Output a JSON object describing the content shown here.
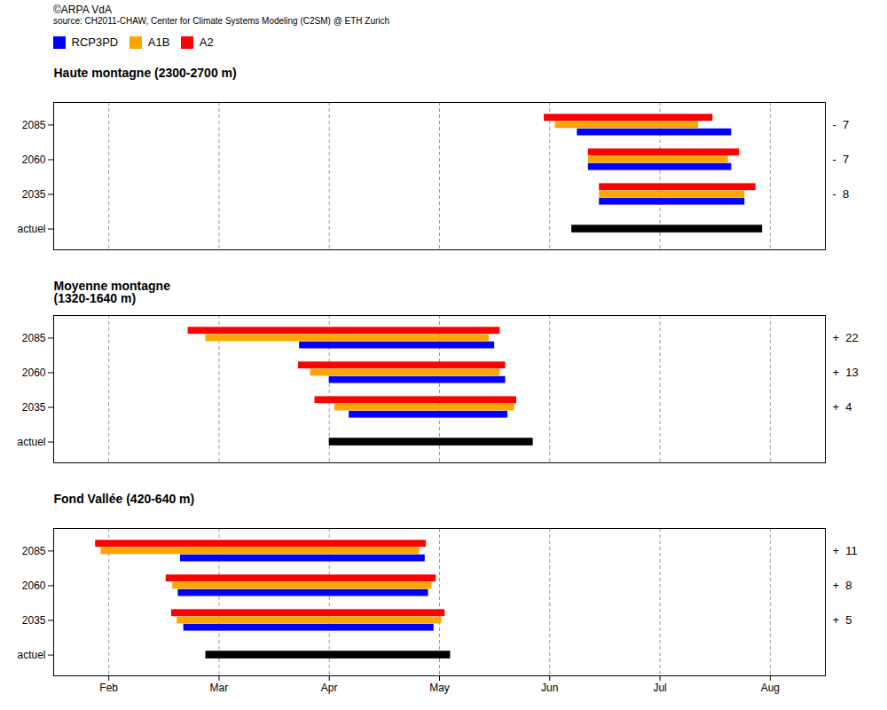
{
  "title": "©ARPA VdA",
  "subtitle": "source: CH2011-CHAW, Center for Climate Systems Modeling (C2SM) @ ETH Zurich",
  "chart_data": [
    {
      "type": "bar",
      "orientation": "horizontal",
      "title": "Haute montagne (2300-2700 m)",
      "categories": [
        "actuel",
        "2035",
        "2060",
        "2085"
      ],
      "series": [
        {
          "color": "#000000",
          "values": [
            [
              6.2,
              7.93
            ],
            null,
            null,
            null
          ]
        },
        {
          "name": "RCP3PD",
          "color": "#0000FF",
          "values": [
            null,
            [
              6.45,
              7.77
            ],
            [
              6.35,
              7.65
            ],
            [
              6.25,
              7.65
            ]
          ]
        },
        {
          "name": "A1B",
          "color": "#FFA500",
          "values": [
            null,
            [
              6.45,
              7.77
            ],
            [
              6.35,
              7.62
            ],
            [
              6.05,
              7.35
            ]
          ]
        },
        {
          "name": "A2",
          "color": "#FF0000",
          "values": [
            null,
            [
              6.45,
              7.87
            ],
            [
              6.35,
              7.72
            ],
            [
              5.95,
              7.48
            ]
          ]
        }
      ],
      "annotations": [
        {
          "text": "-  7",
          "y": "2085"
        },
        {
          "text": "-  7",
          "y": "2060"
        },
        {
          "text": "-  8",
          "y": "2035"
        }
      ],
      "xlim": [
        1.5,
        8.5
      ],
      "xticks": [
        {
          "value": 2,
          "label": "Feb"
        },
        {
          "value": 3,
          "label": "Mar"
        },
        {
          "value": 4,
          "label": "Apr"
        },
        {
          "value": 5,
          "label": "May"
        },
        {
          "value": 6,
          "label": "Jun"
        },
        {
          "value": 7,
          "label": "Jul"
        },
        {
          "value": 8,
          "label": "Aug"
        }
      ],
      "grid": true,
      "legend": "left",
      "tick_labels": "y"
    },
    {
      "type": "bar",
      "orientation": "horizontal",
      "title": "Moyenne montagne\n(1320-1640 m)",
      "categories": [
        "actuel",
        "2035",
        "2060",
        "2085"
      ],
      "series": [
        {
          "color": "#000000",
          "values": [
            [
              4.0,
              5.85
            ],
            null,
            null,
            null
          ]
        },
        {
          "name": "RCP3PD",
          "color": "#0000FF",
          "values": [
            null,
            [
              4.18,
              5.62
            ],
            [
              4.0,
              5.6
            ],
            [
              3.73,
              5.5
            ]
          ]
        },
        {
          "name": "A1B",
          "color": "#FFA500",
          "values": [
            null,
            [
              4.05,
              5.68
            ],
            [
              3.83,
              5.55
            ],
            [
              2.88,
              5.45
            ]
          ]
        },
        {
          "name": "A2",
          "color": "#FF0000",
          "values": [
            null,
            [
              3.87,
              5.7
            ],
            [
              3.72,
              5.6
            ],
            [
              2.72,
              5.55
            ]
          ]
        }
      ],
      "annotations": [
        {
          "text": "+  22",
          "y": "2085"
        },
        {
          "text": "+  13",
          "y": "2060"
        },
        {
          "text": "+  4",
          "y": "2035"
        }
      ],
      "xlim": [
        1.5,
        8.5
      ],
      "xticks": [
        {
          "value": 2,
          "label": "Feb"
        },
        {
          "value": 3,
          "label": "Mar"
        },
        {
          "value": 4,
          "label": "Apr"
        },
        {
          "value": 5,
          "label": "May"
        },
        {
          "value": 6,
          "label": "Jun"
        },
        {
          "value": 7,
          "label": "Jul"
        },
        {
          "value": 8,
          "label": "Aug"
        }
      ],
      "grid": true,
      "tick_labels": "y"
    },
    {
      "type": "bar",
      "orientation": "horizontal",
      "title": "Fond Vallée (420-640 m)",
      "categories": [
        "actuel",
        "2035",
        "2060",
        "2085"
      ],
      "series": [
        {
          "color": "#000000",
          "values": [
            [
              2.88,
              5.1
            ],
            null,
            null,
            null
          ]
        },
        {
          "name": "RCP3PD",
          "color": "#0000FF",
          "values": [
            null,
            [
              2.68,
              4.95
            ],
            [
              2.63,
              4.9
            ],
            [
              2.65,
              4.87
            ]
          ]
        },
        {
          "name": "A1B",
          "color": "#FFA500",
          "values": [
            null,
            [
              2.62,
              5.02
            ],
            [
              2.58,
              4.93
            ],
            [
              1.93,
              4.82
            ]
          ]
        },
        {
          "name": "A2",
          "color": "#FF0000",
          "values": [
            null,
            [
              2.57,
              5.05
            ],
            [
              2.52,
              4.97
            ],
            [
              1.88,
              4.88
            ]
          ]
        }
      ],
      "annotations": [
        {
          "text": "+  11",
          "y": "2085"
        },
        {
          "text": "+  8",
          "y": "2060"
        },
        {
          "text": "+  5",
          "y": "2035"
        }
      ],
      "xlim": [
        1.5,
        8.5
      ],
      "xticks": [
        {
          "value": 2,
          "label": "Feb"
        },
        {
          "value": 3,
          "label": "Mar"
        },
        {
          "value": 4,
          "label": "Apr"
        },
        {
          "value": 5,
          "label": "May"
        },
        {
          "value": 6,
          "label": "Jun"
        },
        {
          "value": 7,
          "label": "Jul"
        },
        {
          "value": 8,
          "label": "Aug"
        }
      ],
      "grid": true
    }
  ]
}
